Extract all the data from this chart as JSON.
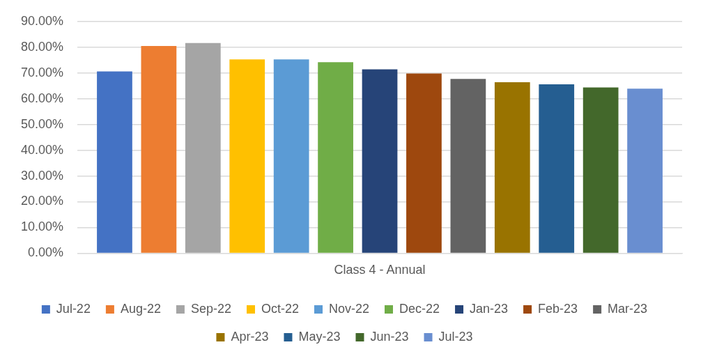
{
  "chart_data": {
    "type": "bar",
    "categories": [
      "Class 4 - Annual"
    ],
    "series": [
      {
        "name": "Jul-22",
        "color": "#4472c4",
        "values": [
          70.6
        ]
      },
      {
        "name": "Aug-22",
        "color": "#ed7d31",
        "values": [
          80.5
        ]
      },
      {
        "name": "Sep-22",
        "color": "#a5a5a5",
        "values": [
          81.6
        ]
      },
      {
        "name": "Oct-22",
        "color": "#ffc000",
        "values": [
          75.3
        ]
      },
      {
        "name": "Nov-22",
        "color": "#5b9bd5",
        "values": [
          75.3
        ]
      },
      {
        "name": "Dec-22",
        "color": "#70ad47",
        "values": [
          74.2
        ]
      },
      {
        "name": "Jan-23",
        "color": "#264478",
        "values": [
          71.4
        ]
      },
      {
        "name": "Feb-23",
        "color": "#9e480e",
        "values": [
          69.8
        ]
      },
      {
        "name": "Mar-23",
        "color": "#636363",
        "values": [
          67.7
        ]
      },
      {
        "name": "Apr-23",
        "color": "#997300",
        "values": [
          66.4
        ]
      },
      {
        "name": "May-23",
        "color": "#255e91",
        "values": [
          65.6
        ]
      },
      {
        "name": "Jun-23",
        "color": "#43682b",
        "values": [
          64.4
        ]
      },
      {
        "name": "Jul-23",
        "color": "#698ed0",
        "values": [
          63.9
        ]
      }
    ],
    "ylim": [
      0,
      90
    ],
    "yticks": [
      {
        "value": 0,
        "label": "0.00%"
      },
      {
        "value": 10,
        "label": "10.00%"
      },
      {
        "value": 20,
        "label": "20.00%"
      },
      {
        "value": 30,
        "label": "30.00%"
      },
      {
        "value": 40,
        "label": "40.00%"
      },
      {
        "value": 50,
        "label": "50.00%"
      },
      {
        "value": 60,
        "label": "60.00%"
      },
      {
        "value": 70,
        "label": "70.00%"
      },
      {
        "value": 80,
        "label": "80.00%"
      },
      {
        "value": 90,
        "label": "90.00%"
      }
    ],
    "grid": "y",
    "legend": "bottom"
  }
}
